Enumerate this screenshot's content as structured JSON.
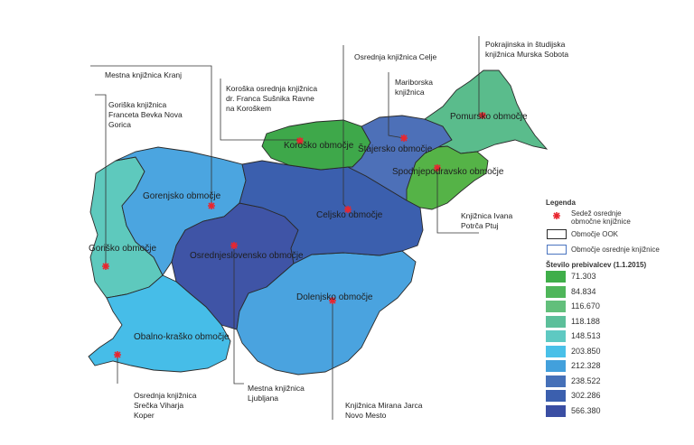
{
  "regions": [
    {
      "id": "gorisko",
      "label": "Goriško območje",
      "color": "#5ec9bd"
    },
    {
      "id": "gorenjsko",
      "label": "Gorenjsko območje",
      "color": "#4ba5e0"
    },
    {
      "id": "osrednjeslovensko",
      "label": "Osrednjeslovensko območje",
      "color": "#3f54a6"
    },
    {
      "id": "obalno_krasko",
      "label": "Obalno-kraško območje",
      "color": "#46bde8"
    },
    {
      "id": "dolenjsko",
      "label": "Dolenjsko območje",
      "color": "#4aa3df"
    },
    {
      "id": "celjsko",
      "label": "Celjsko območje",
      "color": "#3b5fae"
    },
    {
      "id": "korosko",
      "label": "Koroško območje",
      "color": "#3ea84a"
    },
    {
      "id": "stajersko",
      "label": "Štajersko območje",
      "color": "#4d70b8"
    },
    {
      "id": "pomursko",
      "label": "Pomursko območje",
      "color": "#5abc8c"
    },
    {
      "id": "spodnjepodravsko",
      "label": "Spodnjepodravsko območje",
      "color": "#55b347"
    }
  ],
  "callouts": {
    "kranj": "Mestna knjižnica Kranj",
    "gorica": "Goriška knjižnica\nFranceta Bevka Nova\nGorica",
    "ravne": "Koroška osrednja knjižnica\ndr. Franca Sušnika Ravne\nna Koroškem",
    "celje": "Osrednja knjižnica Celje",
    "maribor": "Mariborska\nknjižnica",
    "sobota": "Pokrajinska in študijska\nknjižnica Murska Sobota",
    "ptuj": "Knjižnica Ivana\nPotrča Ptuj",
    "koper": "Osrednja knjižnica\nSrečka Viharja\nKoper",
    "ljubljana": "Mestna knjižnica\nLjubljana",
    "novomesto": "Knjižnica Mirana Jarca\nNovo Mesto"
  },
  "legend": {
    "title": "Legenda",
    "seat_label": "Sedež osrednje\nobmočne knjižnice",
    "ook_label": "Območje OOK",
    "osrednje_label": "Območje osrednje knjižnice",
    "population_title": "Število prebivalcev (1.1.2015)",
    "classes": [
      {
        "value": "71.303",
        "color": "#3fae49"
      },
      {
        "value": "84.834",
        "color": "#4fb65a"
      },
      {
        "value": "116.670",
        "color": "#62bf7b"
      },
      {
        "value": "118.188",
        "color": "#5cbf9a"
      },
      {
        "value": "148.513",
        "color": "#5ec9c2"
      },
      {
        "value": "203.850",
        "color": "#49c0e8"
      },
      {
        "value": "212.328",
        "color": "#42a0dc"
      },
      {
        "value": "238.522",
        "color": "#4570b8"
      },
      {
        "value": "302.286",
        "color": "#3b5fae"
      },
      {
        "value": "566.380",
        "color": "#3a4ea3"
      }
    ]
  },
  "colors": {
    "seat_marker": "#e8262f",
    "boundary_ook": "#2a2a2a",
    "boundary_osrednje": "#4a74c0"
  }
}
